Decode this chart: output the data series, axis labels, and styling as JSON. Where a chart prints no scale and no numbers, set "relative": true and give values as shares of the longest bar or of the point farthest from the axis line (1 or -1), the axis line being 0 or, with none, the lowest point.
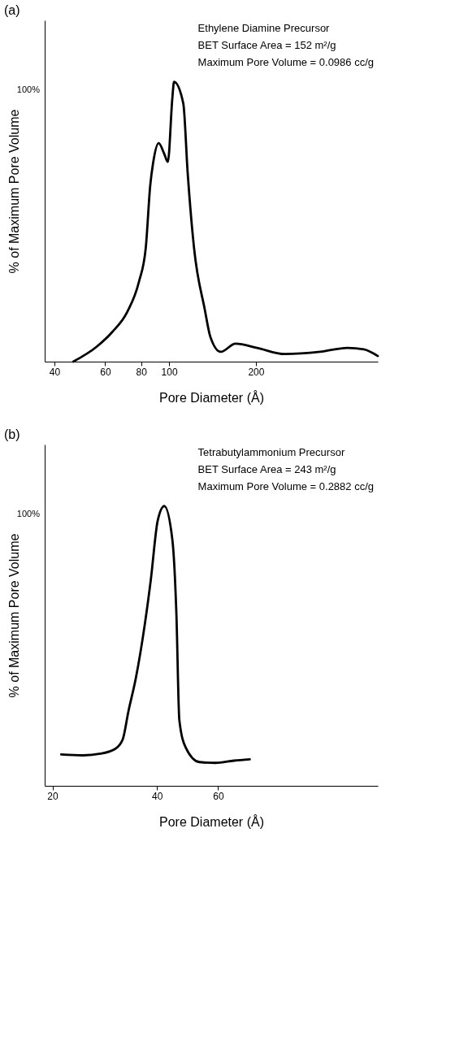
{
  "chart_data": [
    {
      "type": "line",
      "title": "(a)",
      "xlabel": "Pore Diameter (Å)",
      "ylabel": "% of Maximum Pore Volume",
      "relative": true,
      "log": "x",
      "xlim": [
        37,
        530
      ],
      "xticks": [
        40,
        60,
        80,
        100,
        200
      ],
      "grid": false,
      "marker": "none",
      "line_style": "solid",
      "annotations": [
        "Ethylene  Diamine  Precursor",
        "BET Surface Area = 152 m²/g",
        "Maximum Pore Volume = 0.0986 cc/g",
        "100%"
      ],
      "series": [
        {
          "color": "#000000",
          "x": [
            46.5,
            56,
            63.5,
            71.5,
            78.5,
            83,
            86,
            88,
            92,
            96,
            99,
            102.6,
            104,
            112,
            116,
            122,
            133,
            139,
            151,
            170,
            202,
            252,
            334,
            416,
            474,
            530
          ],
          "values": [
            0,
            0.053,
            0.106,
            0.177,
            0.284,
            0.408,
            0.63,
            0.71,
            0.781,
            0.745,
            0.714,
            0.941,
            1,
            0.923,
            0.674,
            0.408,
            0.186,
            0.089,
            0.035,
            0.064,
            0.049,
            0.027,
            0.035,
            0.049,
            0.044,
            0.02
          ]
        }
      ]
    },
    {
      "type": "line",
      "title": "(b)",
      "xlabel": "Pore Diameter (Å)",
      "ylabel": "% of Maximum Pore Volume",
      "relative": true,
      "log": "x",
      "xlim": [
        19,
        173
      ],
      "xticks": [
        20,
        40,
        60
      ],
      "grid": false,
      "marker": "none",
      "line_style": "solid",
      "annotations": [
        "Tetrabutylammonium Precursor",
        "BET Surface Area = 243 m²/g",
        "Maximum Pore Volume = 0.2882 cc/g",
        "100%"
      ],
      "series": [
        {
          "color": "#000000",
          "x": [
            21.2,
            24.5,
            27.5,
            30.4,
            31.9,
            33.1,
            34.8,
            36.9,
            38.4,
            40.2,
            42.0,
            44.3,
            45.5,
            46.4,
            48.4,
            53,
            58.9,
            66.7,
            74
          ],
          "values": [
            0.112,
            0.109,
            0.115,
            0.133,
            0.167,
            0.266,
            0.387,
            0.577,
            0.736,
            0.948,
            1,
            0.88,
            0.615,
            0.235,
            0.137,
            0.085,
            0.082,
            0.09,
            0.095
          ]
        }
      ]
    }
  ]
}
